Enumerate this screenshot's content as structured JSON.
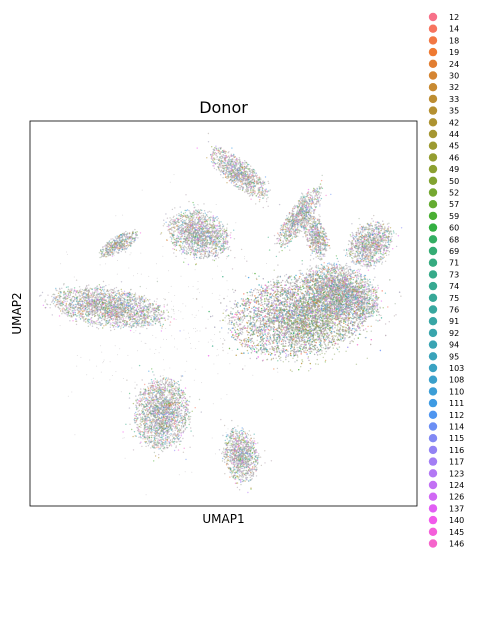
{
  "chart_data": {
    "type": "scatter",
    "title": "Donor",
    "xlabel": "UMAP1",
    "ylabel": "UMAP2",
    "grid": false,
    "legend_placement": "right-outside",
    "point_size": "tiny",
    "series": [
      {
        "name": "12",
        "color": "#f77189"
      },
      {
        "name": "14",
        "color": "#f7745f"
      },
      {
        "name": "18",
        "color": "#f27844"
      },
      {
        "name": "19",
        "color": "#ef7a32"
      },
      {
        "name": "24",
        "color": "#e27e32"
      },
      {
        "name": "30",
        "color": "#d58532"
      },
      {
        "name": "32",
        "color": "#c88a32"
      },
      {
        "name": "33",
        "color": "#bd8d32"
      },
      {
        "name": "35",
        "color": "#b59031"
      },
      {
        "name": "42",
        "color": "#ad9331"
      },
      {
        "name": "44",
        "color": "#a59631"
      },
      {
        "name": "45",
        "color": "#9c9a31"
      },
      {
        "name": "46",
        "color": "#949d31"
      },
      {
        "name": "49",
        "color": "#8ca031"
      },
      {
        "name": "50",
        "color": "#82a331"
      },
      {
        "name": "52",
        "color": "#75a831"
      },
      {
        "name": "57",
        "color": "#64ac31"
      },
      {
        "name": "59",
        "color": "#4aaf33"
      },
      {
        "name": "60",
        "color": "#33b042"
      },
      {
        "name": "68",
        "color": "#34ae63"
      },
      {
        "name": "69",
        "color": "#35ac74"
      },
      {
        "name": "71",
        "color": "#36ab80"
      },
      {
        "name": "73",
        "color": "#36aa89"
      },
      {
        "name": "74",
        "color": "#37a991"
      },
      {
        "name": "75",
        "color": "#37a898"
      },
      {
        "name": "76",
        "color": "#38a79f"
      },
      {
        "name": "91",
        "color": "#38a6a5"
      },
      {
        "name": "92",
        "color": "#39a5ac"
      },
      {
        "name": "94",
        "color": "#39a4b3"
      },
      {
        "name": "95",
        "color": "#3aa3ba"
      },
      {
        "name": "103",
        "color": "#3aa2c2"
      },
      {
        "name": "108",
        "color": "#3ba0cb"
      },
      {
        "name": "110",
        "color": "#3c9ed6"
      },
      {
        "name": "111",
        "color": "#3e9be3"
      },
      {
        "name": "112",
        "color": "#4f96f0"
      },
      {
        "name": "114",
        "color": "#6c8ff4"
      },
      {
        "name": "115",
        "color": "#8289f4"
      },
      {
        "name": "116",
        "color": "#9383f4"
      },
      {
        "name": "117",
        "color": "#a37ef4"
      },
      {
        "name": "123",
        "color": "#b278f4"
      },
      {
        "name": "124",
        "color": "#c271f4"
      },
      {
        "name": "126",
        "color": "#d069f4"
      },
      {
        "name": "137",
        "color": "#e15ef4"
      },
      {
        "name": "140",
        "color": "#f15aeb"
      },
      {
        "name": "145",
        "color": "#f45fda"
      },
      {
        "name": "146",
        "color": "#f565cb"
      }
    ],
    "clusters": [
      {
        "label": "large-right",
        "shape": "blob",
        "cx": 0.695,
        "cy": 0.495,
        "rx": 0.17,
        "ry": 0.095,
        "rot": 10
      },
      {
        "label": "large-right-tail",
        "shape": "blob",
        "cx": 0.805,
        "cy": 0.555,
        "rx": 0.095,
        "ry": 0.06,
        "rot": -25
      },
      {
        "label": "left-crescent",
        "shape": "blob",
        "cx": 0.205,
        "cy": 0.515,
        "rx": 0.135,
        "ry": 0.045,
        "rot": -8
      },
      {
        "label": "top-crescent",
        "shape": "blob",
        "cx": 0.54,
        "cy": 0.865,
        "rx": 0.085,
        "ry": 0.03,
        "rot": -40
      },
      {
        "label": "top-right-streak",
        "shape": "blob",
        "cx": 0.695,
        "cy": 0.75,
        "rx": 0.085,
        "ry": 0.025,
        "rot": 55
      },
      {
        "label": "upper-mid",
        "shape": "blob",
        "cx": 0.435,
        "cy": 0.705,
        "rx": 0.075,
        "ry": 0.055,
        "rot": -20
      },
      {
        "label": "upper-left-small",
        "shape": "blob",
        "cx": 0.23,
        "cy": 0.68,
        "rx": 0.05,
        "ry": 0.02,
        "rot": 30
      },
      {
        "label": "right-arc",
        "shape": "blob",
        "cx": 0.88,
        "cy": 0.68,
        "rx": 0.06,
        "ry": 0.045,
        "rot": 50
      },
      {
        "label": "right-small",
        "shape": "blob",
        "cx": 0.74,
        "cy": 0.7,
        "rx": 0.025,
        "ry": 0.05,
        "rot": 15
      },
      {
        "label": "lower-left",
        "shape": "blob",
        "cx": 0.34,
        "cy": 0.24,
        "rx": 0.065,
        "ry": 0.085,
        "rot": -5
      },
      {
        "label": "lower-mid",
        "shape": "blob",
        "cx": 0.545,
        "cy": 0.13,
        "rx": 0.04,
        "ry": 0.065,
        "rot": 10
      }
    ],
    "xlim": [
      0,
      1
    ],
    "ylim": [
      0,
      1
    ]
  }
}
